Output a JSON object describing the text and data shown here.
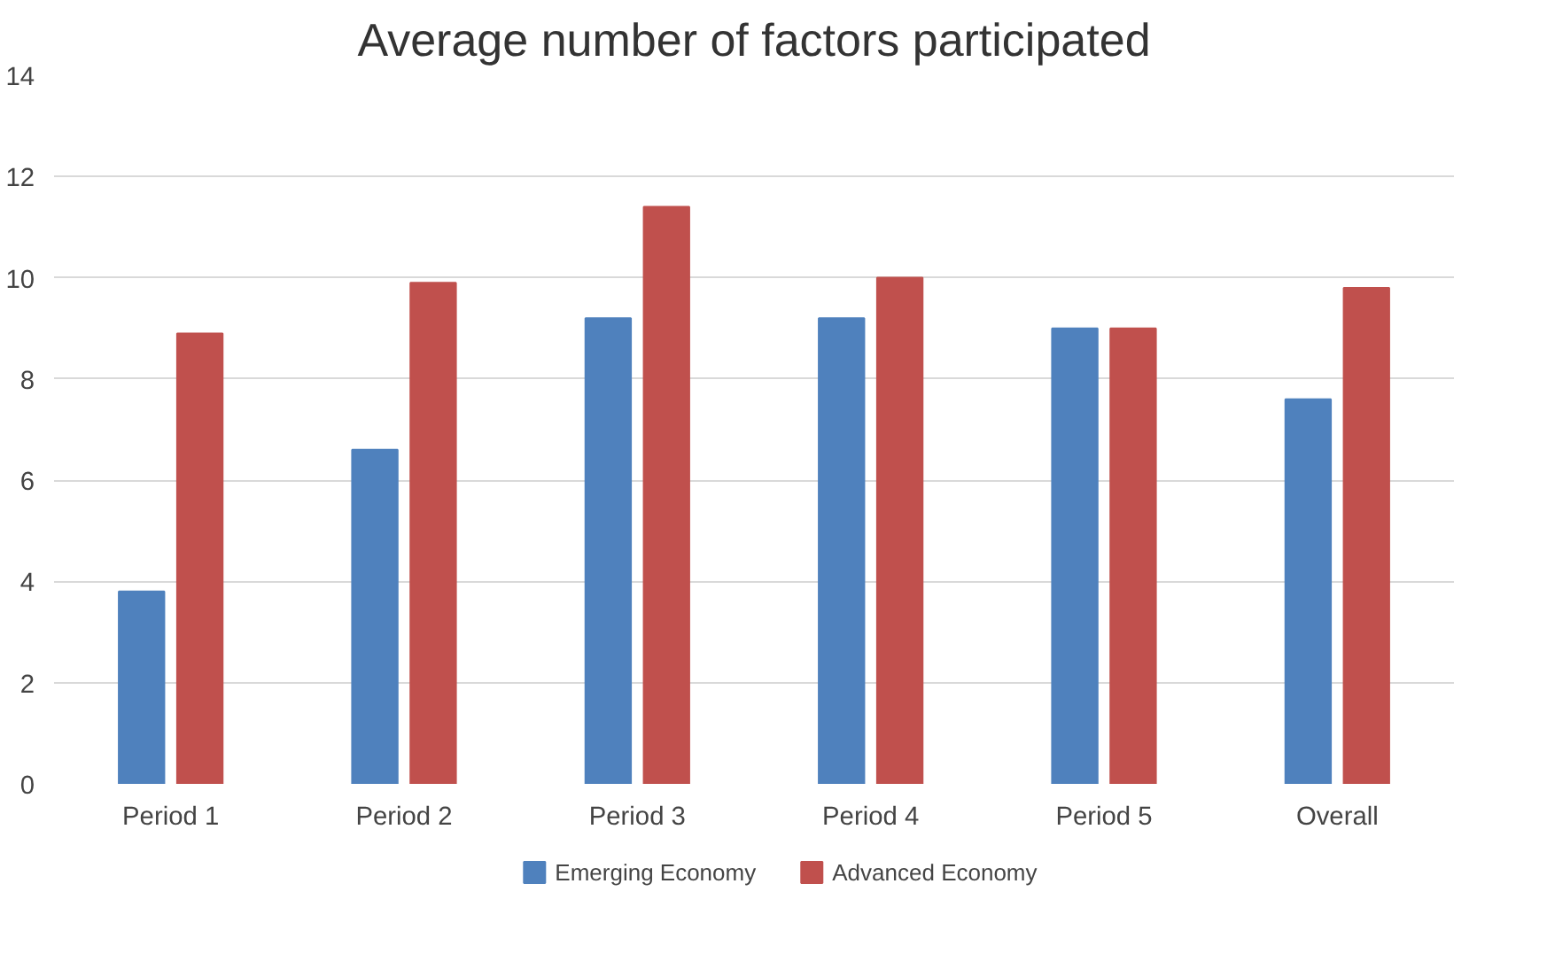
{
  "chart_data": {
    "type": "bar",
    "title": "Average number of factors participated",
    "categories": [
      "Period 1",
      "Period 2",
      "Period 3",
      "Period 4",
      "Period 5",
      "Overall"
    ],
    "series": [
      {
        "name": "Emerging Economy",
        "color": "#4f81bd",
        "values": [
          3.8,
          6.6,
          9.2,
          9.2,
          9.0,
          7.6
        ]
      },
      {
        "name": "Advanced Economy",
        "color": "#c0504d",
        "values": [
          8.9,
          9.9,
          11.4,
          10.0,
          9.0,
          9.8
        ]
      }
    ],
    "ylim": [
      0,
      14
    ],
    "yticks": [
      0,
      2,
      4,
      6,
      8,
      10,
      12,
      14
    ],
    "grid": "y",
    "legend": "bottom"
  }
}
